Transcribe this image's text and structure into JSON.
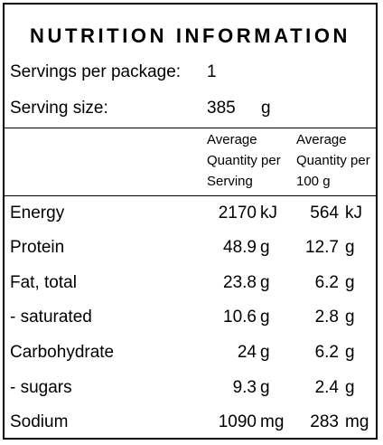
{
  "title": "NUTRITION INFORMATION",
  "servings_per_package": {
    "label": "Servings per package:",
    "value": "1"
  },
  "serving_size": {
    "label": "Serving size:",
    "value": "385",
    "unit": "g"
  },
  "headers": {
    "per_serving": [
      "Average",
      "Quantity per",
      "Serving"
    ],
    "per_100g": [
      "Average",
      "Quantity per",
      "100 g"
    ]
  },
  "rows": [
    {
      "label": "Energy",
      "serving": "2170",
      "serving_unit": "kJ",
      "per100": "564",
      "per100_unit": "kJ"
    },
    {
      "label": "Protein",
      "serving": "48.9",
      "serving_unit": "g",
      "per100": "12.7",
      "per100_unit": "g"
    },
    {
      "label": "Fat, total",
      "serving": "23.8",
      "serving_unit": "g",
      "per100": "6.2",
      "per100_unit": "g"
    },
    {
      "label": "- saturated",
      "serving": "10.6",
      "serving_unit": "g",
      "per100": "2.8",
      "per100_unit": "g"
    },
    {
      "label": "Carbohydrate",
      "serving": "24",
      "serving_unit": "g",
      "per100": "6.2",
      "per100_unit": "g"
    },
    {
      "label": "- sugars",
      "serving": "9.3",
      "serving_unit": "g",
      "per100": "2.4",
      "per100_unit": "g"
    },
    {
      "label": "Sodium",
      "serving": "1090",
      "serving_unit": "mg",
      "per100": "283",
      "per100_unit": "mg"
    }
  ]
}
